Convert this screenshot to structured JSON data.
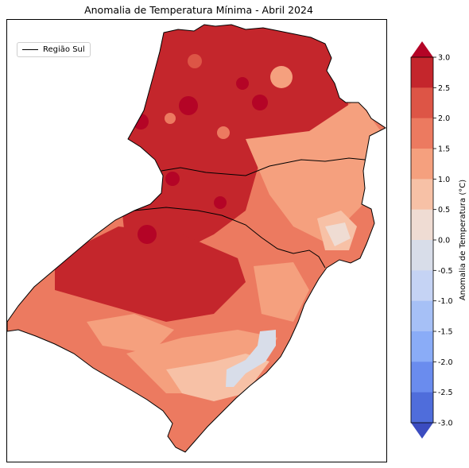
{
  "title": "Anomalia de Temperatura Mínima - Abril 2024",
  "legend": {
    "label": "Região Sul",
    "line_color": "#000000"
  },
  "colorbar": {
    "label": "Anomalia de Temperatura (°C)",
    "ticks": [
      "3.0",
      "2.5",
      "2.0",
      "1.5",
      "1.0",
      "0.5",
      "0.0",
      "-0.5",
      "-1.0",
      "-1.5",
      "-2.0",
      "-2.5",
      "-3.0"
    ],
    "bands_top_to_bottom": [
      "#c4262c",
      "#dd5546",
      "#ec7a60",
      "#f5a07e",
      "#f7c1a6",
      "#efdcd3",
      "#d8dde9",
      "#c5d3f4",
      "#a6c0f6",
      "#8aacf7",
      "#6a8cee",
      "#4f6ddb"
    ],
    "extend_top_color": "#b40426",
    "extend_bottom_color": "#3b4cc0"
  },
  "map": {
    "dominant_value_range_c": [
      0.0,
      3.0
    ],
    "min_anomaly_area": "southern Rio Grande do Sul (0.0 to 0.5 °C)",
    "max_anomaly_area": "western Paraná and northwestern Rio Grande do Sul (2.5 to 3.0 °C)"
  }
}
